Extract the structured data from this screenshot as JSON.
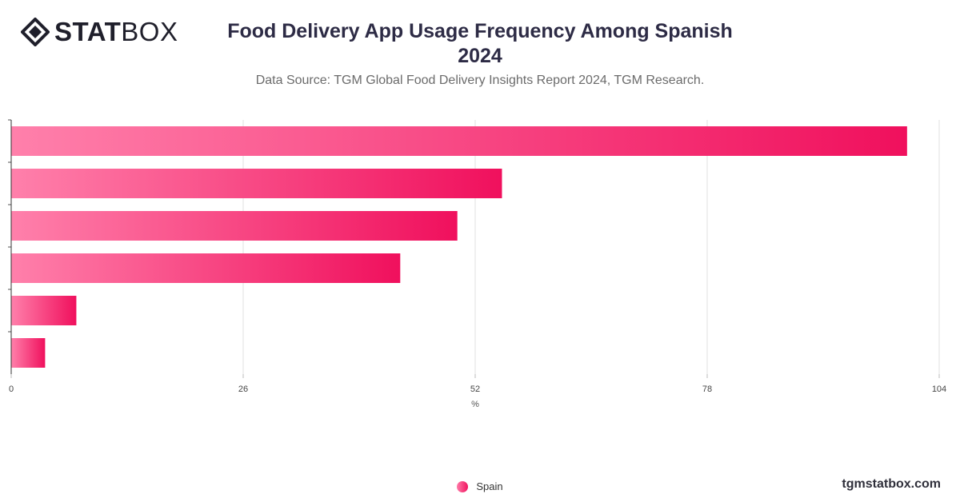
{
  "brand": {
    "logo_bold": "STAT",
    "logo_light": "BOX",
    "watermark": "tgmstatbox.com"
  },
  "colors": {
    "bar_start": "#ff80ab",
    "bar_end": "#f0105d",
    "grid": "#e2e2e2",
    "axis": "#333333"
  },
  "chart_data": {
    "type": "bar",
    "orientation": "horizontal",
    "title": "Food Delivery App Usage Frequency Among Spanish\n2024",
    "subtitle": "Data Source: TGM Global Food Delivery Insights Report 2024, TGM Research.",
    "categories": [
      "",
      "",
      "",
      "",
      "",
      ""
    ],
    "series": [
      {
        "name": "Spain",
        "values": [
          100.4,
          55,
          50,
          43.6,
          7.3,
          3.8
        ]
      }
    ],
    "xlabel": "%",
    "ylabel": "",
    "xlim": [
      0,
      104
    ],
    "xticks": [
      "0",
      "26",
      "52",
      "78",
      "104"
    ],
    "grid": true,
    "legend": "bottom-center"
  }
}
